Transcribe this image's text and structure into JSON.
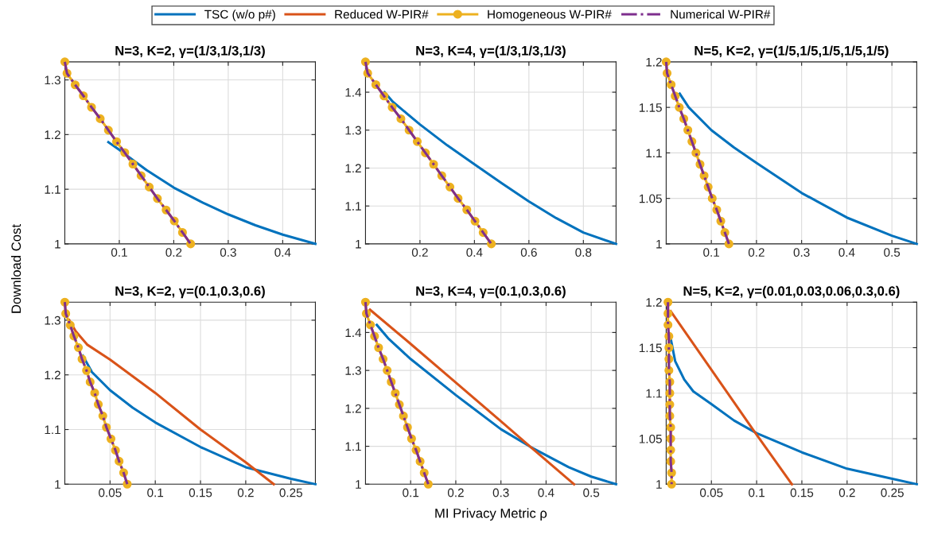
{
  "chart_data": [
    {
      "type": "line",
      "title": "N=3, K=2, γ=(1/3,1/3,1/3)",
      "xlim": [
        0,
        0.46
      ],
      "xticks": [
        0.1,
        0.2,
        0.3,
        0.4
      ],
      "ylim": [
        1,
        1.333
      ],
      "yticks": [
        1,
        1.1,
        1.2,
        1.3
      ],
      "grid": true,
      "series": [
        {
          "color": "#0072bd",
          "line_style": "solid",
          "marker": "none",
          "x": [
            0.08,
            0.1,
            0.15,
            0.2,
            0.25,
            0.3,
            0.35,
            0.4,
            0.46
          ],
          "values": [
            1.186,
            1.172,
            1.135,
            1.103,
            1.077,
            1.054,
            1.034,
            1.017,
            1.0
          ]
        },
        {
          "color": "#edb120",
          "line_style": "solid",
          "marker": "circle",
          "x": [
            0,
            0.004,
            0.019,
            0.034,
            0.049,
            0.065,
            0.08,
            0.095,
            0.11,
            0.125,
            0.14,
            0.155,
            0.17,
            0.186,
            0.201,
            0.216,
            0.231
          ],
          "values": [
            1.333,
            1.312,
            1.291,
            1.271,
            1.25,
            1.229,
            1.208,
            1.187,
            1.167,
            1.146,
            1.125,
            1.104,
            1.083,
            1.062,
            1.042,
            1.021,
            1.0
          ]
        },
        {
          "color": "#7e2f8e",
          "line_style": "dashdot",
          "marker": "none",
          "x": [
            0,
            0.004,
            0.019,
            0.034,
            0.049,
            0.065,
            0.08,
            0.095,
            0.11,
            0.125,
            0.14,
            0.155,
            0.17,
            0.186,
            0.201,
            0.216,
            0.231
          ],
          "values": [
            1.333,
            1.312,
            1.291,
            1.271,
            1.25,
            1.229,
            1.208,
            1.187,
            1.167,
            1.146,
            1.125,
            1.104,
            1.083,
            1.062,
            1.042,
            1.021,
            1.0
          ]
        }
      ]
    },
    {
      "type": "line",
      "title": "N=3, K=4, γ=(1/3,1/3,1/3)",
      "xlim": [
        0,
        0.92
      ],
      "xticks": [
        0.2,
        0.4,
        0.6,
        0.8
      ],
      "ylim": [
        1,
        1.48
      ],
      "yticks": [
        1,
        1.1,
        1.2,
        1.3,
        1.4
      ],
      "grid": true,
      "series": [
        {
          "color": "#0072bd",
          "line_style": "solid",
          "marker": "none",
          "x": [
            0.07,
            0.1,
            0.2,
            0.3,
            0.4,
            0.5,
            0.6,
            0.7,
            0.8,
            0.92
          ],
          "values": [
            1.4,
            1.375,
            1.315,
            1.26,
            1.21,
            1.16,
            1.112,
            1.068,
            1.03,
            1.0
          ]
        },
        {
          "color": "#edb120",
          "line_style": "solid",
          "marker": "circle",
          "x": [
            0,
            0.008,
            0.038,
            0.068,
            0.098,
            0.13,
            0.16,
            0.19,
            0.22,
            0.25,
            0.28,
            0.31,
            0.34,
            0.372,
            0.402,
            0.432,
            0.462
          ],
          "values": [
            1.48,
            1.45,
            1.42,
            1.39,
            1.36,
            1.33,
            1.3,
            1.27,
            1.24,
            1.21,
            1.18,
            1.15,
            1.12,
            1.09,
            1.06,
            1.03,
            1.0
          ]
        },
        {
          "color": "#7e2f8e",
          "line_style": "dashdot",
          "marker": "none",
          "x": [
            0,
            0.008,
            0.038,
            0.068,
            0.098,
            0.13,
            0.16,
            0.19,
            0.22,
            0.25,
            0.28,
            0.31,
            0.34,
            0.372,
            0.402,
            0.432,
            0.462
          ],
          "values": [
            1.48,
            1.45,
            1.42,
            1.39,
            1.36,
            1.33,
            1.3,
            1.27,
            1.24,
            1.21,
            1.18,
            1.15,
            1.12,
            1.09,
            1.06,
            1.03,
            1.0
          ]
        }
      ]
    },
    {
      "type": "line",
      "title": "N=5, K=2, γ=(1/5,1/5,1/5,1/5,1/5)",
      "xlim": [
        0,
        0.555
      ],
      "xticks": [
        0.1,
        0.2,
        0.3,
        0.4,
        0.5
      ],
      "ylim": [
        1,
        1.2
      ],
      "yticks": [
        1,
        1.05,
        1.1,
        1.15,
        1.2
      ],
      "grid": true,
      "series": [
        {
          "color": "#0072bd",
          "line_style": "solid",
          "marker": "none",
          "x": [
            0.03,
            0.05,
            0.1,
            0.15,
            0.2,
            0.3,
            0.4,
            0.5,
            0.555
          ],
          "values": [
            1.165,
            1.15,
            1.125,
            1.106,
            1.089,
            1.056,
            1.029,
            1.009,
            1.0
          ]
        },
        {
          "color": "#edb120",
          "line_style": "solid",
          "marker": "circle",
          "x": [
            0,
            0.002,
            0.011,
            0.02,
            0.029,
            0.039,
            0.048,
            0.057,
            0.066,
            0.075,
            0.084,
            0.093,
            0.102,
            0.112,
            0.121,
            0.13,
            0.139
          ],
          "values": [
            1.2,
            1.1875,
            1.175,
            1.1625,
            1.15,
            1.1375,
            1.125,
            1.1125,
            1.1,
            1.0875,
            1.075,
            1.0625,
            1.05,
            1.0375,
            1.025,
            1.0125,
            1.0
          ]
        },
        {
          "color": "#7e2f8e",
          "line_style": "dashdot",
          "marker": "none",
          "x": [
            0,
            0.002,
            0.011,
            0.02,
            0.029,
            0.039,
            0.048,
            0.057,
            0.066,
            0.075,
            0.084,
            0.093,
            0.102,
            0.112,
            0.121,
            0.13,
            0.139
          ],
          "values": [
            1.2,
            1.1875,
            1.175,
            1.1625,
            1.15,
            1.1375,
            1.125,
            1.1125,
            1.1,
            1.0875,
            1.075,
            1.0625,
            1.05,
            1.0375,
            1.025,
            1.0125,
            1.0
          ]
        }
      ]
    },
    {
      "type": "line",
      "title": "N=3, K=2, γ=(0.1,0.3,0.6)",
      "ylabel": "Download Cost",
      "legend": "top",
      "xlim": [
        0,
        0.277
      ],
      "xticks": [
        0.05,
        0.1,
        0.15,
        0.2,
        0.25
      ],
      "ylim": [
        1,
        1.333
      ],
      "yticks": [
        1,
        1.1,
        1.2,
        1.3
      ],
      "grid": true,
      "series": [
        {
          "name": "TSC (w/o p#)",
          "color": "#0072bd",
          "line_style": "solid",
          "marker": "none",
          "x": [
            0.02,
            0.03,
            0.05,
            0.075,
            0.1,
            0.15,
            0.2,
            0.25,
            0.277
          ],
          "values": [
            1.235,
            1.205,
            1.172,
            1.14,
            1.113,
            1.068,
            1.031,
            1.01,
            1.0
          ]
        },
        {
          "name": "Reduced W-PIR#",
          "color": "#d95319",
          "line_style": "solid",
          "marker": "none",
          "x": [
            0.005,
            0.012,
            0.025,
            0.05,
            0.1,
            0.15,
            0.2,
            0.231
          ],
          "values": [
            1.3,
            1.28,
            1.255,
            1.228,
            1.167,
            1.1,
            1.04,
            1.0
          ]
        },
        {
          "name": "Homogeneous W-PIR#",
          "color": "#edb120",
          "line_style": "solid",
          "marker": "circle",
          "x": [
            0,
            0.001,
            0.006,
            0.01,
            0.015,
            0.019,
            0.024,
            0.028,
            0.033,
            0.037,
            0.042,
            0.046,
            0.051,
            0.056,
            0.06,
            0.065,
            0.069
          ],
          "values": [
            1.333,
            1.312,
            1.291,
            1.271,
            1.25,
            1.229,
            1.208,
            1.187,
            1.167,
            1.146,
            1.125,
            1.104,
            1.083,
            1.062,
            1.042,
            1.021,
            1.0
          ]
        },
        {
          "name": "Numerical W-PIR#",
          "color": "#7e2f8e",
          "line_style": "dashdot",
          "marker": "none",
          "x": [
            0,
            0.001,
            0.006,
            0.01,
            0.015,
            0.019,
            0.024,
            0.028,
            0.033,
            0.037,
            0.042,
            0.046,
            0.051,
            0.056,
            0.06,
            0.065,
            0.069
          ],
          "values": [
            1.333,
            1.312,
            1.291,
            1.271,
            1.25,
            1.229,
            1.208,
            1.187,
            1.167,
            1.146,
            1.125,
            1.104,
            1.083,
            1.062,
            1.042,
            1.021,
            1.0
          ]
        }
      ]
    },
    {
      "type": "line",
      "title": "N=3, K=4, γ=(0.1,0.3,0.6)",
      "xlabel": "MI Privacy Metric ρ",
      "xlim": [
        0,
        0.555
      ],
      "xticks": [
        0.1,
        0.2,
        0.3,
        0.4,
        0.5
      ],
      "ylim": [
        1,
        1.48
      ],
      "yticks": [
        1,
        1.1,
        1.2,
        1.3,
        1.4
      ],
      "grid": true,
      "series": [
        {
          "color": "#0072bd",
          "line_style": "solid",
          "marker": "none",
          "x": [
            0.025,
            0.05,
            0.1,
            0.2,
            0.3,
            0.366,
            0.45,
            0.5,
            0.555
          ],
          "values": [
            1.42,
            1.385,
            1.33,
            1.235,
            1.145,
            1.098,
            1.045,
            1.02,
            1.0
          ]
        },
        {
          "color": "#d95319",
          "line_style": "solid",
          "marker": "none",
          "x": [
            0.01,
            0.1,
            0.2,
            0.3,
            0.366,
            0.462
          ],
          "values": [
            1.46,
            1.37,
            1.268,
            1.166,
            1.098,
            1.0
          ]
        },
        {
          "color": "#edb120",
          "line_style": "solid",
          "marker": "circle",
          "x": [
            0,
            0.002,
            0.011,
            0.02,
            0.029,
            0.039,
            0.048,
            0.057,
            0.066,
            0.075,
            0.084,
            0.093,
            0.102,
            0.112,
            0.121,
            0.13,
            0.139
          ],
          "values": [
            1.48,
            1.45,
            1.42,
            1.39,
            1.36,
            1.33,
            1.3,
            1.27,
            1.24,
            1.21,
            1.18,
            1.15,
            1.12,
            1.09,
            1.06,
            1.03,
            1.0
          ]
        },
        {
          "color": "#7e2f8e",
          "line_style": "dashdot",
          "marker": "none",
          "x": [
            0,
            0.002,
            0.011,
            0.02,
            0.029,
            0.039,
            0.048,
            0.057,
            0.066,
            0.075,
            0.084,
            0.093,
            0.102,
            0.112,
            0.121,
            0.13,
            0.139
          ],
          "values": [
            1.48,
            1.45,
            1.42,
            1.39,
            1.36,
            1.33,
            1.3,
            1.27,
            1.24,
            1.21,
            1.18,
            1.15,
            1.12,
            1.09,
            1.06,
            1.03,
            1.0
          ]
        }
      ]
    },
    {
      "type": "line",
      "title": "N=5, K=2, γ=(0.01,0.03,0.06,0.3,0.6)",
      "xlim": [
        0,
        0.277
      ],
      "xticks": [
        0.05,
        0.1,
        0.15,
        0.2,
        0.25
      ],
      "ylim": [
        1,
        1.2
      ],
      "yticks": [
        1,
        1.05,
        1.1,
        1.15,
        1.2
      ],
      "grid": true,
      "series": [
        {
          "color": "#0072bd",
          "line_style": "solid",
          "marker": "none",
          "x": [
            0.004,
            0.01,
            0.02,
            0.03,
            0.05,
            0.075,
            0.1,
            0.15,
            0.2,
            0.25,
            0.277
          ],
          "values": [
            1.165,
            1.135,
            1.115,
            1.102,
            1.088,
            1.07,
            1.056,
            1.035,
            1.017,
            1.006,
            1.0
          ]
        },
        {
          "color": "#d95319",
          "line_style": "solid",
          "marker": "none",
          "x": [
            0.005,
            0.096,
            0.139
          ],
          "values": [
            1.19,
            1.06,
            1.0
          ]
        },
        {
          "color": "#edb120",
          "line_style": "solid",
          "marker": "circle",
          "x": [
            0.002,
            0.002,
            0.002,
            0.003,
            0.003,
            0.003,
            0.003,
            0.004,
            0.004,
            0.004,
            0.004,
            0.005,
            0.005,
            0.005,
            0.005,
            0.006,
            0.006
          ],
          "values": [
            1.2,
            1.1875,
            1.175,
            1.1625,
            1.15,
            1.1375,
            1.125,
            1.1125,
            1.1,
            1.0875,
            1.075,
            1.0625,
            1.05,
            1.0375,
            1.025,
            1.0125,
            1.0
          ]
        },
        {
          "color": "#7e2f8e",
          "line_style": "dashdot",
          "marker": "none",
          "x": [
            0.002,
            0.002,
            0.002,
            0.003,
            0.003,
            0.003,
            0.003,
            0.004,
            0.004,
            0.004,
            0.004,
            0.005,
            0.005,
            0.005,
            0.005,
            0.006,
            0.006
          ],
          "values": [
            1.2,
            1.1875,
            1.175,
            1.1625,
            1.15,
            1.1375,
            1.125,
            1.1125,
            1.1,
            1.0875,
            1.075,
            1.0625,
            1.05,
            1.0375,
            1.025,
            1.0125,
            1.0
          ]
        }
      ]
    }
  ]
}
